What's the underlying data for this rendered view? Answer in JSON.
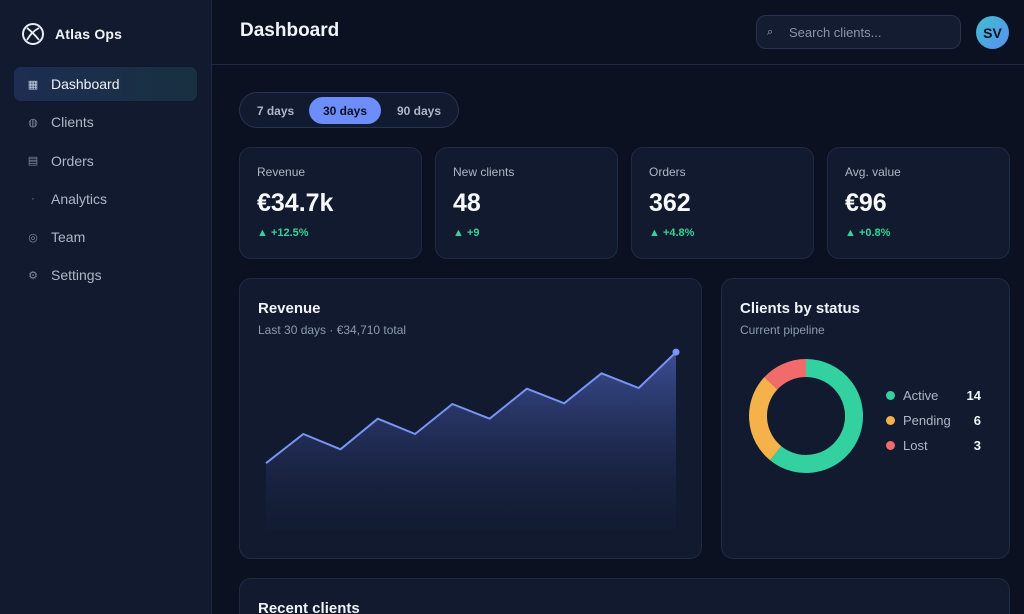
{
  "brand": {
    "name": "Atlas Ops"
  },
  "sidebar": {
    "items": [
      {
        "label": "Dashboard",
        "icon": "grid-icon",
        "glyph": "▦",
        "active": true
      },
      {
        "label": "Clients",
        "icon": "users-icon",
        "glyph": "◍",
        "active": false
      },
      {
        "label": "Orders",
        "icon": "orders-icon",
        "glyph": "▤",
        "active": false
      },
      {
        "label": "Analytics",
        "icon": "analytics-icon",
        "glyph": "·",
        "active": false
      },
      {
        "label": "Team",
        "icon": "team-icon",
        "glyph": "◎",
        "active": false
      },
      {
        "label": "Settings",
        "icon": "gear-icon",
        "glyph": "⚙",
        "active": false
      }
    ]
  },
  "header": {
    "title": "Dashboard",
    "search": {
      "placeholder": "Search clients...",
      "icon": "search-icon"
    },
    "avatar_initials": "SV"
  },
  "range": {
    "tabs": [
      {
        "label": "7 days",
        "active": false
      },
      {
        "label": "30 days",
        "active": true
      },
      {
        "label": "90 days",
        "active": false
      }
    ]
  },
  "kpis": [
    {
      "label": "Revenue",
      "value": "€34.7k",
      "delta": "▲ +12.5%"
    },
    {
      "label": "New clients",
      "value": "48",
      "delta": "▲ +9"
    },
    {
      "label": "Orders",
      "value": "362",
      "delta": "▲ +4.8%"
    },
    {
      "label": "Avg. value",
      "value": "€96",
      "delta": "▲ +0.8%"
    }
  ],
  "revenue_panel": {
    "title": "Revenue",
    "subtitle": "Last 30 days · €34,710 total"
  },
  "status_panel": {
    "title": "Clients by status",
    "subtitle": "Current pipeline"
  },
  "recent_panel": {
    "title": "Recent clients"
  },
  "colors": {
    "accent": "#6d8dfa",
    "line": "#7a93f6",
    "active": "#34d1a0",
    "pending": "#f5b14a",
    "lost": "#f26b6b",
    "positive": "#34d399"
  },
  "chart_data": [
    {
      "type": "area",
      "x": [
        1,
        2,
        3,
        4,
        5,
        6,
        7,
        8,
        9,
        10,
        11,
        12
      ],
      "series": [
        {
          "values": [
            450,
            650,
            545,
            755,
            650,
            855,
            755,
            960,
            860,
            1065,
            965,
            1210
          ]
        }
      ],
      "ylim": [
        0,
        1300
      ],
      "grid": false
    },
    {
      "type": "pie",
      "categories": [
        "Active",
        "Pending",
        "Lost"
      ],
      "values": [
        14,
        6,
        3
      ],
      "colors": [
        "#34d1a0",
        "#f5b14a",
        "#f26b6b"
      ],
      "legend": "right"
    }
  ]
}
